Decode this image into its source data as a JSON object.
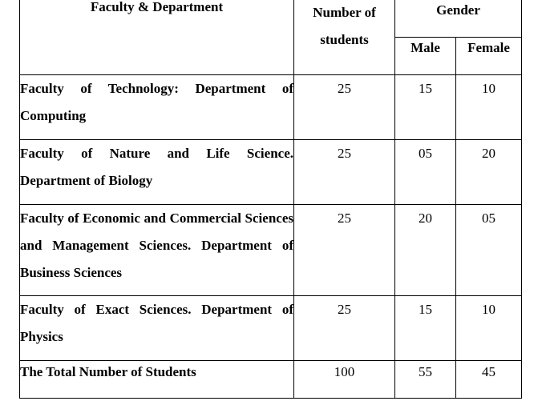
{
  "table": {
    "headers": {
      "faculty": "Faculty & Department",
      "number": "Number of students",
      "gender": "Gender",
      "male": "Male",
      "female": "Female"
    },
    "rows": [
      {
        "faculty": "Faculty of Technology: Department of Computing",
        "students": "25",
        "male": "15",
        "female": "10"
      },
      {
        "faculty": "Faculty of Nature and Life Science. Department of Biology",
        "students": "25",
        "male": "05",
        "female": "20"
      },
      {
        "faculty": "Faculty of Economic and Commercial Sciences and Management Sciences. Department of Business Sciences",
        "students": "25",
        "male": "20",
        "female": "05"
      },
      {
        "faculty": "Faculty of Exact Sciences. Department of Physics",
        "students": "25",
        "male": "15",
        "female": "10"
      }
    ],
    "total": {
      "label": "The Total Number of Students",
      "students": "100",
      "male": "55",
      "female": "45"
    }
  }
}
